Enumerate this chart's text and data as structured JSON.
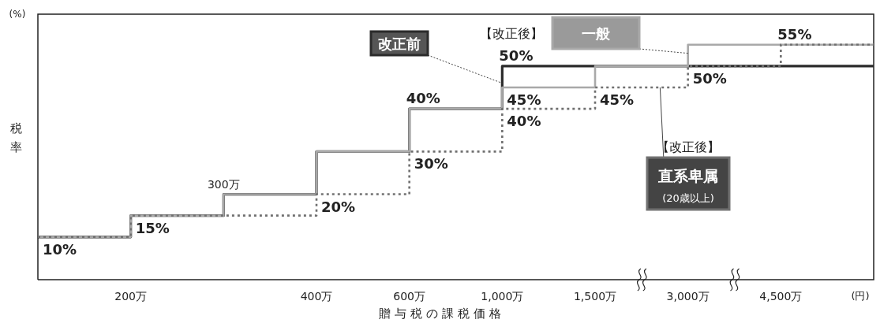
{
  "chart_data": {
    "type": "step",
    "xlabel": "贈与税の課税価格",
    "ylabel": "税率",
    "categories": [
      null,
      "200万",
      null,
      "400万",
      "600万",
      "1,000万",
      "1,500万",
      "3,000万",
      "4,500万",
      null
    ],
    "tick_labels": "x",
    "series": [
      {
        "name": "改正前",
        "color": "#2b2b2b",
        "line_style": "solid",
        "values": [
          10,
          15,
          20,
          30,
          40,
          50,
          50,
          50,
          50,
          50
        ],
        "value_labels": [
          null,
          null,
          null,
          null,
          "40%",
          "50%",
          null,
          null,
          null,
          null
        ]
      },
      {
        "name": "一般",
        "color": "#a9a9a9",
        "line_style": "solid",
        "values": [
          10,
          15,
          20,
          30,
          40,
          45,
          50,
          55,
          55,
          55
        ],
        "value_labels": [
          null,
          null,
          null,
          null,
          null,
          "45%",
          null,
          null,
          null,
          null
        ]
      },
      {
        "name": "直系卑属",
        "color": "#707070",
        "line_style": "dotted",
        "values": [
          10,
          15,
          15,
          20,
          30,
          40,
          45,
          50,
          55,
          55
        ],
        "value_labels": [
          "10%",
          "15%",
          null,
          "20%",
          "30%",
          "40%",
          "45%",
          "50%",
          "55%",
          null
        ]
      }
    ],
    "annotations": [
      "(%)",
      "(円)",
      "【改正後】",
      "【改正後】",
      "(20歳以上)",
      "300万"
    ]
  }
}
